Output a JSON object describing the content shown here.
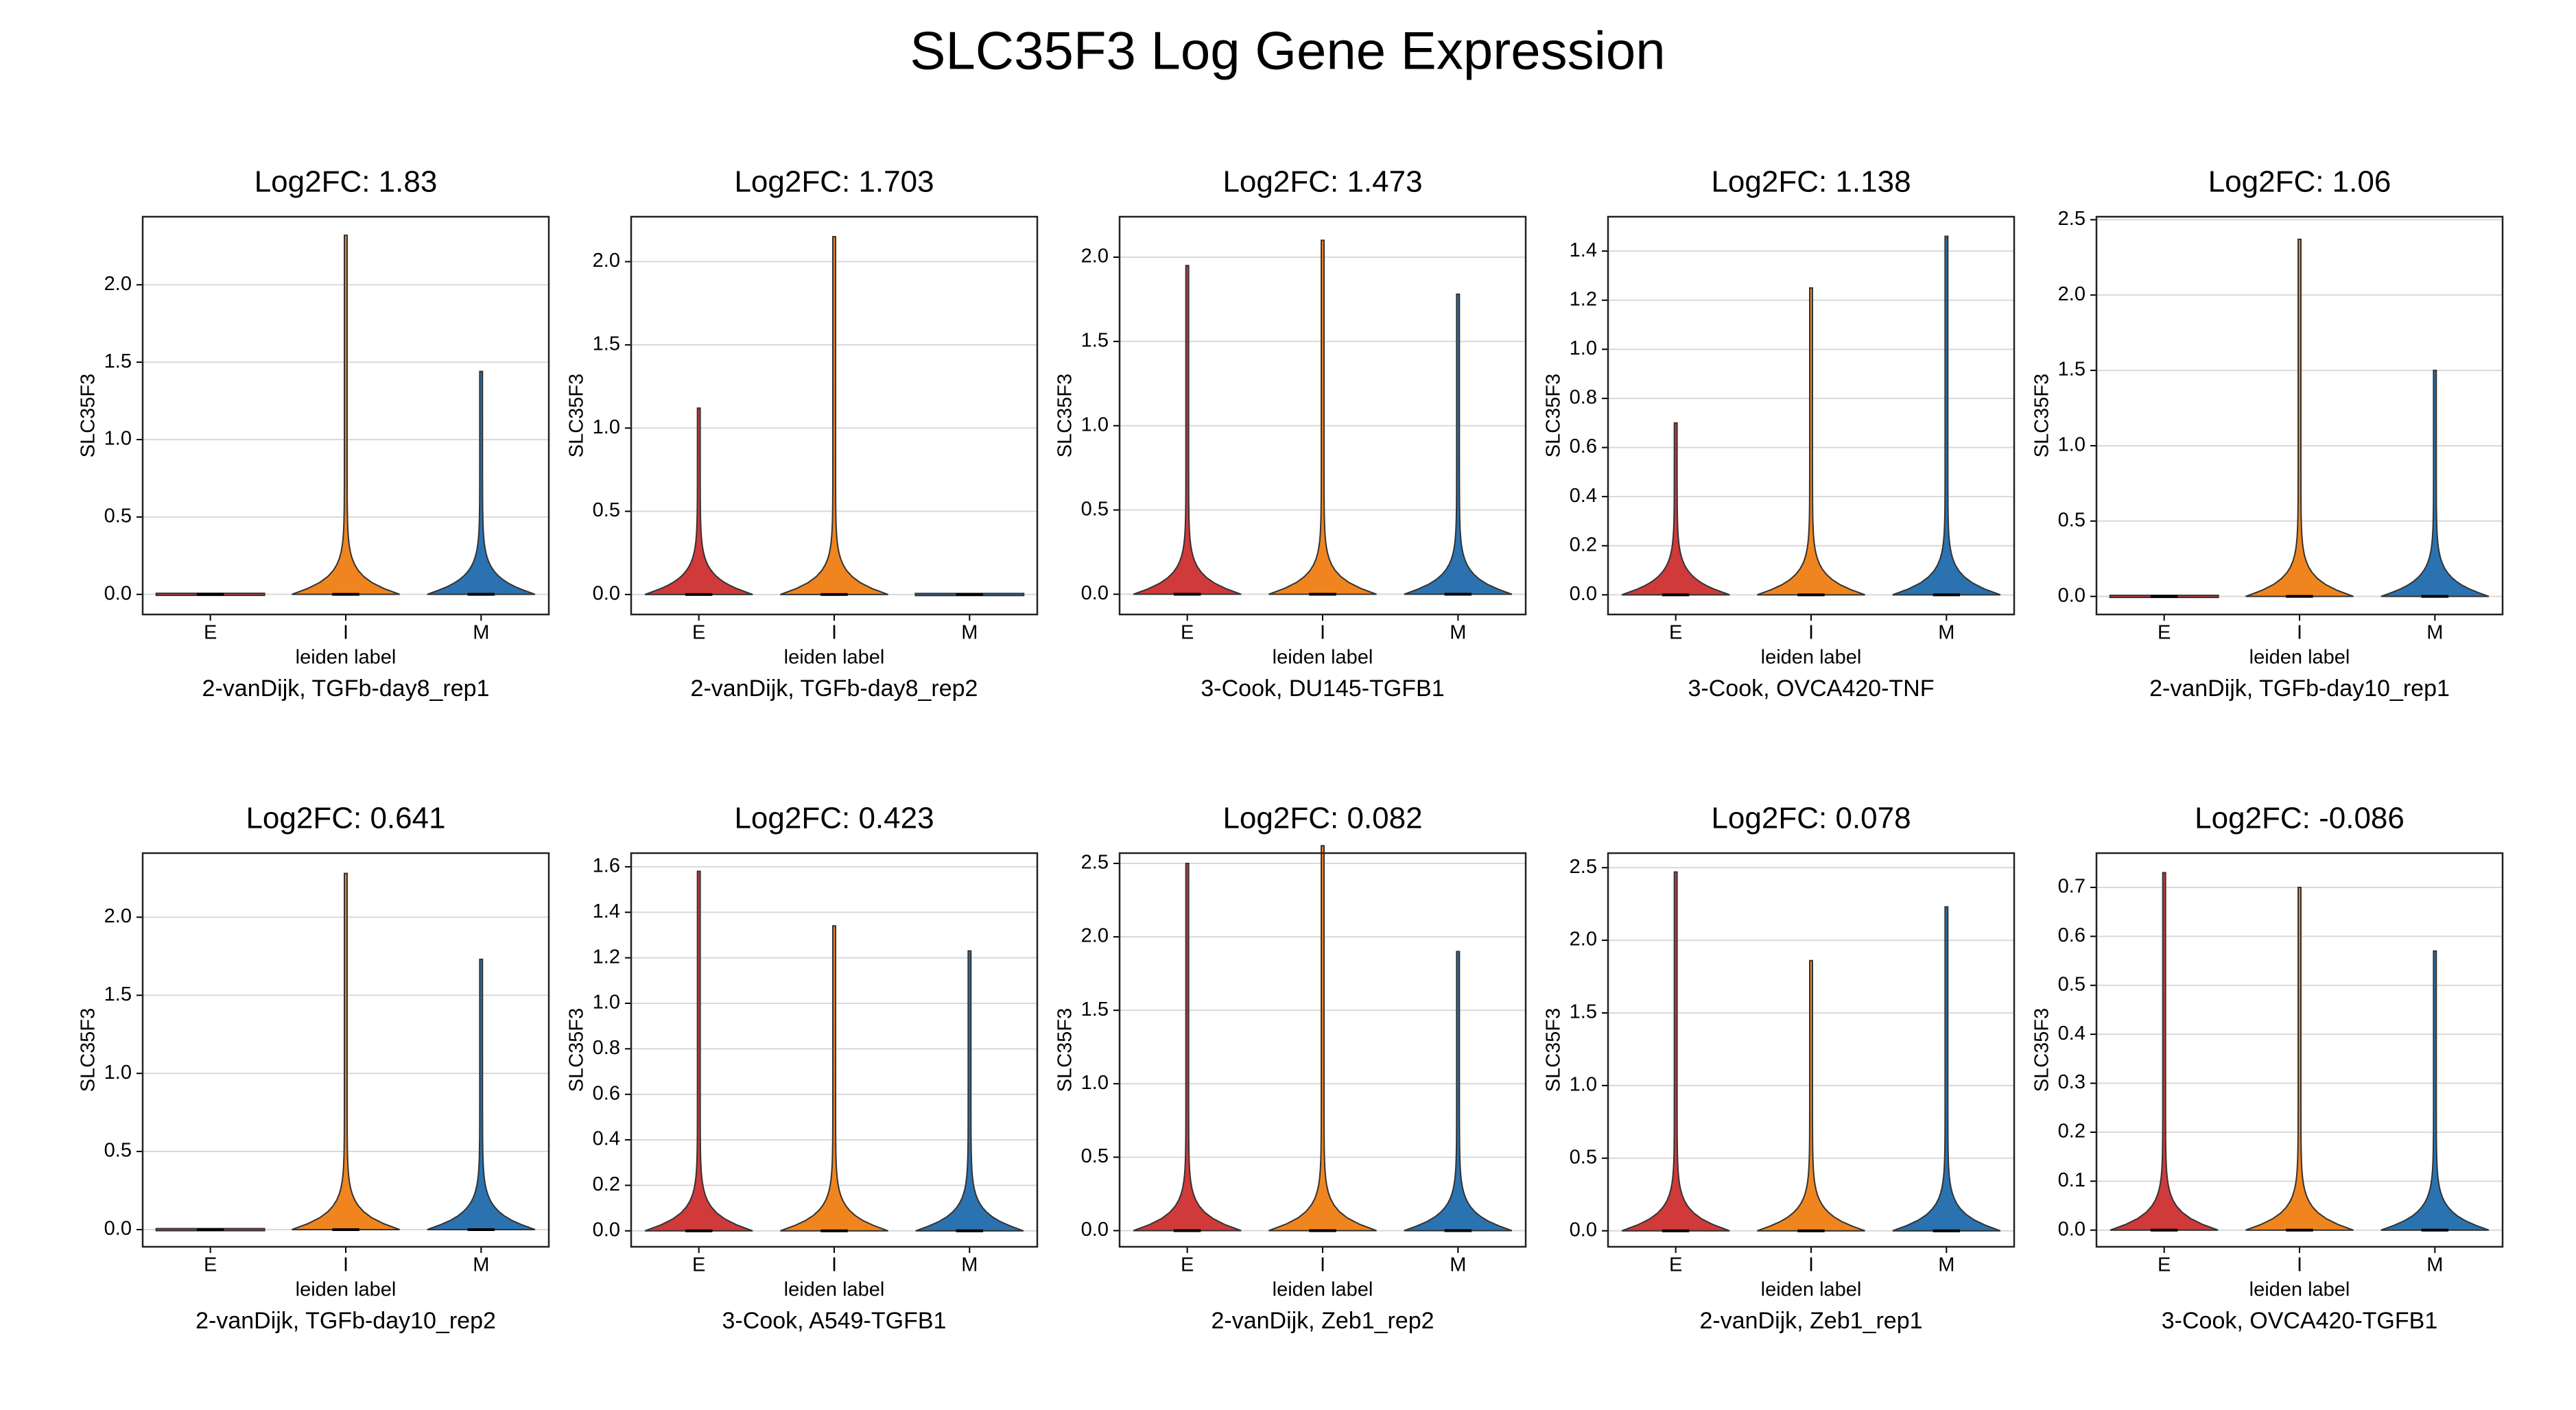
{
  "title": "SLC35F3 Log Gene Expression",
  "chart_data": [
    {
      "type": "violin",
      "title": "Log2FC: 1.83",
      "caption": "2-vanDijk, TGFb-day8_rep1",
      "xlabel": "leiden label",
      "ylabel": "SLC35F3",
      "categories": [
        "E",
        "I",
        "M"
      ],
      "colors": [
        "#d03a3a",
        "#f0851f",
        "#2a73b0"
      ],
      "values": [
        0,
        2.32,
        1.44
      ],
      "ylim": [
        -0.13,
        2.44
      ],
      "yticks": [
        {
          "value": 0,
          "label": "0.0"
        },
        0.5,
        {
          "value": 1,
          "label": "1.0"
        },
        1.5,
        {
          "value": 2,
          "label": "2.0"
        }
      ],
      "grid": true
    },
    {
      "type": "violin",
      "title": "Log2FC: 1.703",
      "caption": "2-vanDijk, TGFb-day8_rep2",
      "xlabel": "leiden label",
      "ylabel": "SLC35F3",
      "categories": [
        "E",
        "I",
        "M"
      ],
      "colors": [
        "#d03a3a",
        "#f0851f",
        "#2a73b0"
      ],
      "values": [
        1.12,
        2.15,
        0
      ],
      "ylim": [
        -0.12,
        2.27
      ],
      "yticks": [
        {
          "value": 0,
          "label": "0.0"
        },
        0.5,
        {
          "value": 1,
          "label": "1.0"
        },
        1.5,
        {
          "value": 2,
          "label": "2.0"
        }
      ],
      "grid": true
    },
    {
      "type": "violin",
      "title": "Log2FC: 1.473",
      "caption": "3-Cook, DU145-TGFB1",
      "xlabel": "leiden label",
      "ylabel": "SLC35F3",
      "categories": [
        "E",
        "I",
        "M"
      ],
      "colors": [
        "#d03a3a",
        "#f0851f",
        "#2a73b0"
      ],
      "values": [
        1.95,
        2.1,
        1.78
      ],
      "ylim": [
        -0.12,
        2.24
      ],
      "yticks": [
        {
          "value": 0,
          "label": "0.0"
        },
        0.5,
        {
          "value": 1,
          "label": "1.0"
        },
        1.5,
        {
          "value": 2,
          "label": "2.0"
        }
      ],
      "grid": true
    },
    {
      "type": "violin",
      "title": "Log2FC: 1.138",
      "caption": "3-Cook, OVCA420-TNF",
      "xlabel": "leiden label",
      "ylabel": "SLC35F3",
      "categories": [
        "E",
        "I",
        "M"
      ],
      "colors": [
        "#d03a3a",
        "#f0851f",
        "#2a73b0"
      ],
      "values": [
        0.7,
        1.25,
        1.46
      ],
      "ylim": [
        -0.08,
        1.54
      ],
      "yticks": [
        {
          "value": 0,
          "label": "0.0"
        },
        0.2,
        0.4,
        0.6,
        0.8,
        {
          "value": 1,
          "label": "1.0"
        },
        1.2,
        1.4
      ],
      "grid": true
    },
    {
      "type": "violin",
      "title": "Log2FC: 1.06",
      "caption": "2-vanDijk, TGFb-day10_rep1",
      "xlabel": "leiden label",
      "ylabel": "SLC35F3",
      "categories": [
        "E",
        "I",
        "M"
      ],
      "colors": [
        "#d03a3a",
        "#f0851f",
        "#2a73b0"
      ],
      "values": [
        0,
        2.37,
        1.5
      ],
      "ylim": [
        -0.12,
        2.52
      ],
      "yticks": [
        {
          "value": 0,
          "label": "0.0"
        },
        0.5,
        {
          "value": 1,
          "label": "1.0"
        },
        1.5,
        {
          "value": 2,
          "label": "2.0"
        },
        2.5
      ],
      "grid": true
    },
    {
      "type": "violin",
      "title": "Log2FC: 0.641",
      "caption": "2-vanDijk, TGFb-day10_rep2",
      "xlabel": "leiden label",
      "ylabel": "SLC35F3",
      "categories": [
        "E",
        "I",
        "M"
      ],
      "colors": [
        "#d03a3a",
        "#f0851f",
        "#2a73b0"
      ],
      "values": [
        0,
        2.28,
        1.73
      ],
      "ylim": [
        -0.11,
        2.41
      ],
      "yticks": [
        {
          "value": 0,
          "label": "0.0"
        },
        0.5,
        {
          "value": 1,
          "label": "1.0"
        },
        1.5,
        {
          "value": 2,
          "label": "2.0"
        }
      ],
      "grid": true
    },
    {
      "type": "violin",
      "title": "Log2FC: 0.423",
      "caption": "3-Cook, A549-TGFB1",
      "xlabel": "leiden label",
      "ylabel": "SLC35F3",
      "categories": [
        "E",
        "I",
        "M"
      ],
      "colors": [
        "#d03a3a",
        "#f0851f",
        "#2a73b0"
      ],
      "values": [
        1.58,
        1.34,
        1.23
      ],
      "ylim": [
        -0.07,
        1.66
      ],
      "yticks": [
        {
          "value": 0,
          "label": "0.0"
        },
        0.2,
        0.4,
        0.6,
        0.8,
        {
          "value": 1,
          "label": "1.0"
        },
        1.2,
        1.4,
        1.6
      ],
      "grid": true
    },
    {
      "type": "violin",
      "title": "Log2FC: 0.082",
      "caption": "2-vanDijk, Zeb1_rep2",
      "xlabel": "leiden label",
      "ylabel": "SLC35F3",
      "categories": [
        "E",
        "I",
        "M"
      ],
      "colors": [
        "#d03a3a",
        "#f0851f",
        "#2a73b0"
      ],
      "values": [
        2.5,
        2.62,
        1.9
      ],
      "ylim": [
        -0.11,
        2.57
      ],
      "yticks": [
        {
          "value": 0,
          "label": "0.0"
        },
        0.5,
        {
          "value": 1,
          "label": "1.0"
        },
        1.5,
        {
          "value": 2,
          "label": "2.0"
        },
        2.5
      ],
      "grid": true
    },
    {
      "type": "violin",
      "title": "Log2FC: 0.078",
      "caption": "2-vanDijk, Zeb1_rep1",
      "xlabel": "leiden label",
      "ylabel": "SLC35F3",
      "categories": [
        "E",
        "I",
        "M"
      ],
      "colors": [
        "#d03a3a",
        "#f0851f",
        "#2a73b0"
      ],
      "values": [
        2.47,
        1.86,
        2.23
      ],
      "ylim": [
        -0.11,
        2.6
      ],
      "yticks": [
        {
          "value": 0,
          "label": "0.0"
        },
        0.5,
        {
          "value": 1,
          "label": "1.0"
        },
        1.5,
        {
          "value": 2,
          "label": "2.0"
        },
        2.5
      ],
      "grid": true
    },
    {
      "type": "violin",
      "title": "Log2FC: -0.086",
      "caption": "3-Cook, OVCA420-TGFB1",
      "xlabel": "leiden label",
      "ylabel": "SLC35F3",
      "categories": [
        "E",
        "I",
        "M"
      ],
      "colors": [
        "#d03a3a",
        "#f0851f",
        "#2a73b0"
      ],
      "values": [
        0.73,
        0.7,
        0.57
      ],
      "ylim": [
        -0.034,
        0.77
      ],
      "yticks": [
        {
          "value": 0,
          "label": "0.0"
        },
        0.1,
        0.2,
        0.3,
        0.4,
        0.5,
        0.6,
        0.7
      ],
      "grid": true
    }
  ]
}
